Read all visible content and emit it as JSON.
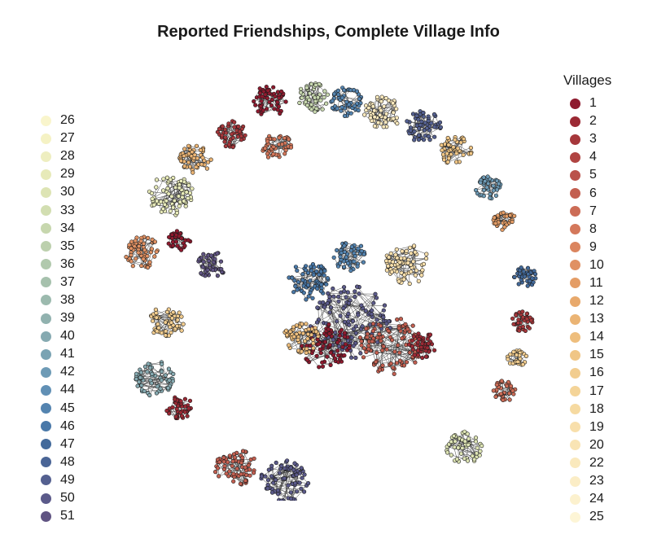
{
  "title": "Reported Friendships, Complete Village Info",
  "legend_title": "Villages",
  "legend_left": [
    {
      "label": "26",
      "color": "#f9f5cc"
    },
    {
      "label": "27",
      "color": "#f5f2c4"
    },
    {
      "label": "28",
      "color": "#eeeec0"
    },
    {
      "label": "29",
      "color": "#e7eab9"
    },
    {
      "label": "30",
      "color": "#dde4b4"
    },
    {
      "label": "33",
      "color": "#d2deb1"
    },
    {
      "label": "34",
      "color": "#c7d7ae"
    },
    {
      "label": "35",
      "color": "#bcd0ad"
    },
    {
      "label": "36",
      "color": "#b1c9ad"
    },
    {
      "label": "37",
      "color": "#a6c1ad"
    },
    {
      "label": "38",
      "color": "#9cbaae"
    },
    {
      "label": "39",
      "color": "#91b2af"
    },
    {
      "label": "40",
      "color": "#86aab1"
    },
    {
      "label": "41",
      "color": "#7aa3b3"
    },
    {
      "label": "42",
      "color": "#6e9bb6"
    },
    {
      "label": "44",
      "color": "#6190b5"
    },
    {
      "label": "45",
      "color": "#5484b0"
    },
    {
      "label": "46",
      "color": "#4978a8"
    },
    {
      "label": "47",
      "color": "#436a9b"
    },
    {
      "label": "48",
      "color": "#4a6596"
    },
    {
      "label": "49",
      "color": "#546090"
    },
    {
      "label": "50",
      "color": "#5b5a8a"
    },
    {
      "label": "51",
      "color": "#605482"
    }
  ],
  "legend_right": [
    {
      "label": "1",
      "color": "#8e1a2e"
    },
    {
      "label": "2",
      "color": "#9b2934"
    },
    {
      "label": "3",
      "color": "#a6373b"
    },
    {
      "label": "4",
      "color": "#b04442"
    },
    {
      "label": "5",
      "color": "#ba524a"
    },
    {
      "label": "6",
      "color": "#c35f50"
    },
    {
      "label": "7",
      "color": "#cc6c56"
    },
    {
      "label": "8",
      "color": "#d4785b"
    },
    {
      "label": "9",
      "color": "#db855f"
    },
    {
      "label": "10",
      "color": "#e09163"
    },
    {
      "label": "11",
      "color": "#e49d66"
    },
    {
      "label": "12",
      "color": "#e8a96c"
    },
    {
      "label": "13",
      "color": "#ebb474"
    },
    {
      "label": "14",
      "color": "#eebe7d"
    },
    {
      "label": "15",
      "color": "#f0c686"
    },
    {
      "label": "16",
      "color": "#f2cd8f"
    },
    {
      "label": "17",
      "color": "#f4d498"
    },
    {
      "label": "18",
      "color": "#f6daa1"
    },
    {
      "label": "19",
      "color": "#f8dfab"
    },
    {
      "label": "20",
      "color": "#f9e4b4"
    },
    {
      "label": "22",
      "color": "#fae9bd"
    },
    {
      "label": "23",
      "color": "#fbedc6"
    },
    {
      "label": "24",
      "color": "#fcf1ce"
    },
    {
      "label": "25",
      "color": "#fdf5d6"
    }
  ]
}
